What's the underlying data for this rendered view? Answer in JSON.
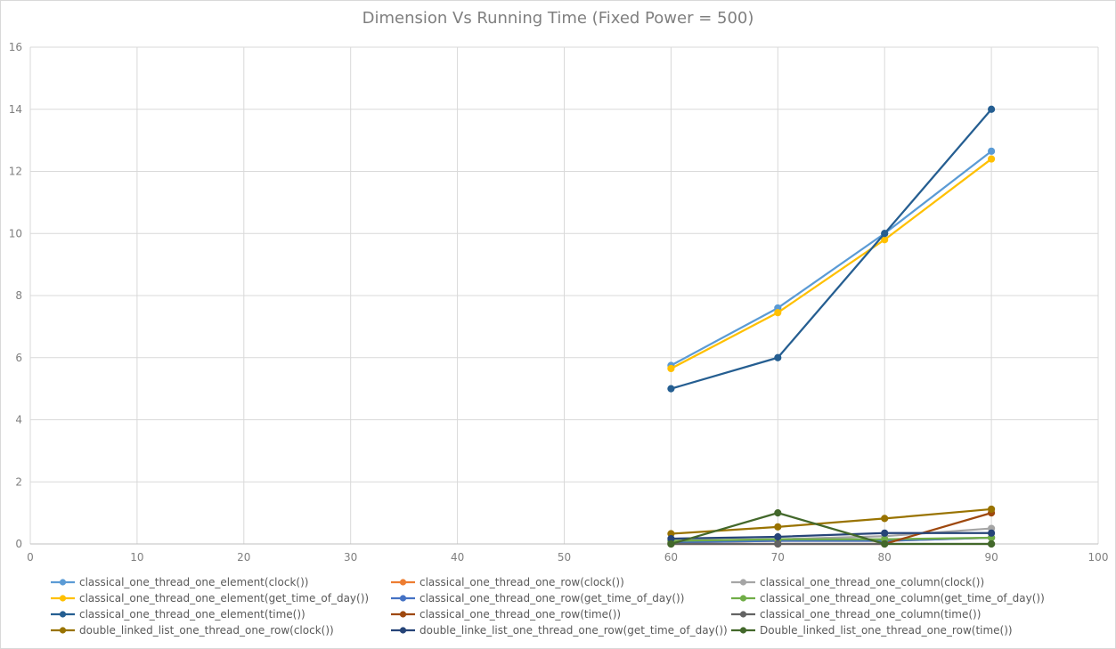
{
  "chart_data": {
    "type": "line",
    "title": "Dimension Vs Running Time (Fixed Power = 500)",
    "xlabel": "",
    "ylabel": "",
    "xlim": [
      0,
      100
    ],
    "ylim": [
      0,
      16
    ],
    "x_ticks": [
      0,
      10,
      20,
      30,
      40,
      50,
      60,
      70,
      80,
      90,
      100
    ],
    "y_ticks": [
      0,
      2,
      4,
      6,
      8,
      10,
      12,
      14,
      16
    ],
    "grid": true,
    "legend_position": "bottom",
    "x": [
      60,
      70,
      80,
      90
    ],
    "series": [
      {
        "name": "classical_one_thread_one_element(clock())",
        "color": "#5b9bd5",
        "values": [
          5.75,
          7.6,
          10.0,
          12.65
        ]
      },
      {
        "name": "classical_one_thread_one_row(clock())",
        "color": "#ed7d31",
        "values": [
          0.05,
          0.1,
          0.1,
          0.2
        ]
      },
      {
        "name": "classical_one_thread_one_column(clock())",
        "color": "#a5a5a5",
        "values": [
          0.1,
          0.15,
          0.25,
          0.5
        ]
      },
      {
        "name": "classical_one_thread_one_element(get_time_of_day())",
        "color": "#ffc000",
        "values": [
          5.65,
          7.45,
          9.8,
          12.4
        ]
      },
      {
        "name": "classical_one_thread_one_row(get_time_of_day())",
        "color": "#4472c4",
        "values": [
          0.05,
          0.1,
          0.1,
          0.2
        ]
      },
      {
        "name": "classical_one_thread_one_column(get_time_of_day())",
        "color": "#70ad47",
        "values": [
          0.1,
          0.15,
          0.15,
          0.2
        ]
      },
      {
        "name": "classical_one_thread_one_element(time())",
        "color": "#255e91",
        "values": [
          5,
          6,
          10,
          14
        ]
      },
      {
        "name": "classical_one_thread_one_row(time())",
        "color": "#9e480e",
        "values": [
          0,
          0,
          0,
          1
        ]
      },
      {
        "name": "classical_one_thread_one_column(time())",
        "color": "#636363",
        "values": [
          0,
          0,
          0,
          0
        ]
      },
      {
        "name": "double_linked_list_one_thread_one_row(clock())",
        "color": "#997300",
        "values": [
          0.33,
          0.55,
          0.82,
          1.12
        ]
      },
      {
        "name": "double_linke_list_one_thread_one_row(get_time_of_day())",
        "color": "#264478",
        "values": [
          0.17,
          0.23,
          0.35,
          0.35
        ]
      },
      {
        "name": "Double_linked_list_one_thread_one_row(time())",
        "color": "#43682b",
        "values": [
          0,
          1,
          0,
          0
        ]
      }
    ]
  }
}
